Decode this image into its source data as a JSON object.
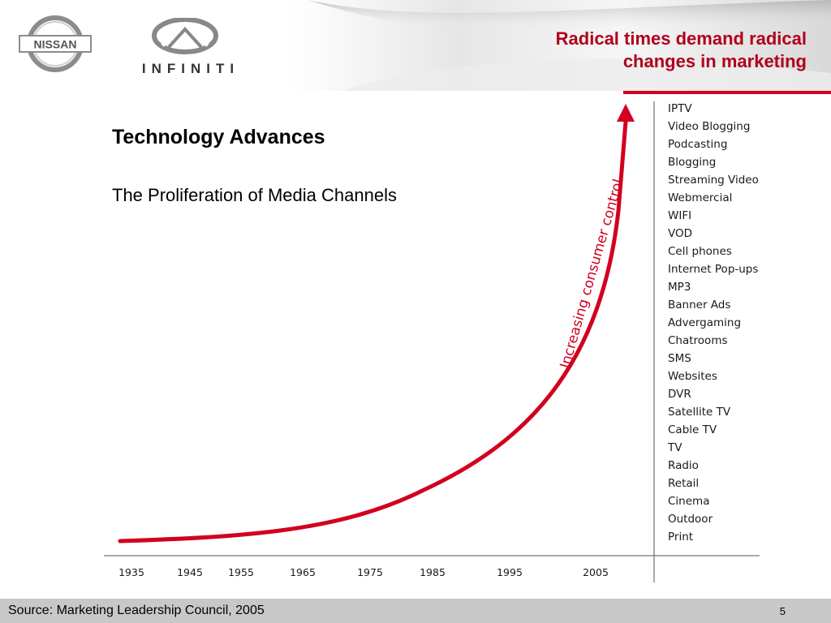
{
  "header": {
    "title_line1": "Radical times demand radical",
    "title_line2": "changes in marketing",
    "logos": {
      "nissan": "NISSAN",
      "infiniti": "INFINITI"
    },
    "accent_color": "#d2001e"
  },
  "main": {
    "heading": "Technology Advances",
    "subheading": "The Proliferation of Media Channels"
  },
  "diagram": {
    "curve_label": "Increasing consumer control",
    "years": [
      "1935",
      "1945",
      "1955",
      "1965",
      "1975",
      "1985",
      "1995",
      "2005"
    ],
    "channels": [
      "IPTV",
      "Video Blogging",
      "Podcasting",
      "Blogging",
      "Streaming Video",
      "Webmercial",
      "WIFI",
      "VOD",
      "Cell phones",
      "Internet Pop-ups",
      "MP3",
      "Banner Ads",
      "Advergaming",
      "Chatrooms",
      "SMS",
      "Websites",
      "DVR",
      "Satellite TV",
      "Cable TV",
      "TV",
      "Radio",
      "Retail",
      "Cinema",
      "Outdoor",
      "Print"
    ],
    "curve_color": "#d2001e"
  },
  "footer": {
    "source": "Source: Marketing Leadership Council, 2005",
    "page_number": "5"
  }
}
